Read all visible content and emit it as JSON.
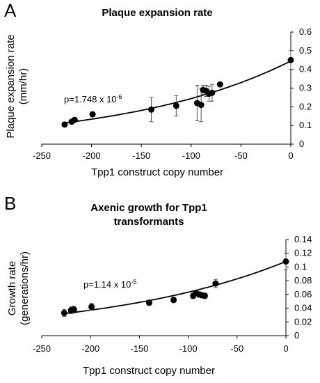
{
  "chart_data": [
    {
      "type": "scatter",
      "panel_label": "A",
      "title": "Plaque expansion rate",
      "xlabel": "Tpp1 construct copy number",
      "ylabel_line1": "Plaque expansion rate",
      "ylabel_line2": "(mm/hr)",
      "xlim": [
        -250,
        0
      ],
      "ylim": [
        0,
        0.6
      ],
      "xticks": [
        -250,
        -200,
        -150,
        -100,
        -50,
        0
      ],
      "yticks": [
        0,
        0.1,
        0.2,
        0.3,
        0.4,
        0.5,
        0.6
      ],
      "ytick_labels": [
        "0",
        "0.1",
        "0.2",
        "0.3",
        "0.4",
        "0.5",
        "0.6"
      ],
      "y_axis_position": "right",
      "grid": false,
      "annotation": {
        "prefix": "p=1.748 x 10",
        "exponent": "-6"
      },
      "points": [
        {
          "x": -227,
          "y": 0.105,
          "err": 0
        },
        {
          "x": -220,
          "y": 0.12,
          "err": 0
        },
        {
          "x": -217,
          "y": 0.13,
          "err": 0
        },
        {
          "x": -199,
          "y": 0.16,
          "err": 0
        },
        {
          "x": -140,
          "y": 0.185,
          "err": 0.065
        },
        {
          "x": -115,
          "y": 0.205,
          "err": 0.055
        },
        {
          "x": -94,
          "y": 0.22,
          "err": 0.095
        },
        {
          "x": -90,
          "y": 0.21,
          "err": 0.09
        },
        {
          "x": -88,
          "y": 0.29,
          "err": 0.025
        },
        {
          "x": -85,
          "y": 0.285,
          "err": 0.03
        },
        {
          "x": -82,
          "y": 0.27,
          "err": 0.04
        },
        {
          "x": -79,
          "y": 0.275,
          "err": 0.045
        },
        {
          "x": -71,
          "y": 0.32,
          "err": 0
        },
        {
          "x": 0,
          "y": 0.45,
          "err": 0.05
        }
      ],
      "trendline": {
        "kind": "exponential",
        "x": [
          -228,
          0
        ],
        "y": [
          0.113,
          0.445
        ]
      }
    },
    {
      "type": "scatter",
      "panel_label": "B",
      "title_line1": "Axenic growth for Tpp1",
      "title_line2": "transformants",
      "xlabel": "Tpp1 construct copy number",
      "ylabel_line1": "Growth rate",
      "ylabel_line2": "(generations/hr)",
      "xlim": [
        -250,
        0
      ],
      "ylim": [
        0,
        0.14
      ],
      "xticks": [
        -250,
        -200,
        -150,
        -100,
        -50,
        0
      ],
      "yticks": [
        0,
        0.02,
        0.04,
        0.06,
        0.08,
        0.1,
        0.12,
        0.14
      ],
      "ytick_labels": [
        "0",
        "0.02",
        "0.04",
        "0.06",
        "0.08",
        "0.1",
        "0.12",
        "0.14"
      ],
      "y_axis_position": "right",
      "grid": false,
      "annotation": {
        "prefix": "p=1.14 x 10",
        "exponent": "-5"
      },
      "points": [
        {
          "x": -227,
          "y": 0.033,
          "err": 0.005
        },
        {
          "x": -220,
          "y": 0.037,
          "err": 0.005
        },
        {
          "x": -217,
          "y": 0.038,
          "err": 0.005
        },
        {
          "x": -199,
          "y": 0.042,
          "err": 0.005
        },
        {
          "x": -140,
          "y": 0.048,
          "err": 0.004
        },
        {
          "x": -115,
          "y": 0.052,
          "err": 0.004
        },
        {
          "x": -95,
          "y": 0.058,
          "err": 0.004
        },
        {
          "x": -92,
          "y": 0.062,
          "err": 0.004
        },
        {
          "x": -89,
          "y": 0.06,
          "err": 0.004
        },
        {
          "x": -86,
          "y": 0.059,
          "err": 0.004
        },
        {
          "x": -83,
          "y": 0.058,
          "err": 0.004
        },
        {
          "x": -72,
          "y": 0.076,
          "err": 0.006
        },
        {
          "x": 0,
          "y": 0.108,
          "err": 0.012
        }
      ],
      "trendline": {
        "kind": "exponential",
        "x": [
          -228,
          0
        ],
        "y": [
          0.032,
          0.108
        ]
      }
    }
  ]
}
